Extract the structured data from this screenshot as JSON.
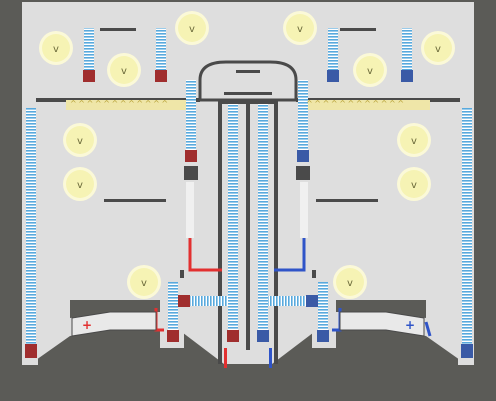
{
  "game": {
    "title": "",
    "bulb_glyph": "v",
    "left_pipe_sign": "+",
    "right_pipe_sign": "+",
    "fan_glyphs": "^^^^^^^^^^^^",
    "colors": {
      "frame": "#5b5b57",
      "room": "#dedede",
      "bulb": "#f6f3b4",
      "bulb_glow": "#fbf9d8",
      "spring": "#6ab8e6",
      "red_pipe": "#e23030",
      "blue_pipe": "#2f54c8",
      "fan": "#efe6a8",
      "wall": "#4a4a4a"
    },
    "bulbs_count": 12,
    "rooms": [
      "upper-left",
      "upper-right",
      "lower-left",
      "lower-right",
      "central-dome"
    ]
  }
}
